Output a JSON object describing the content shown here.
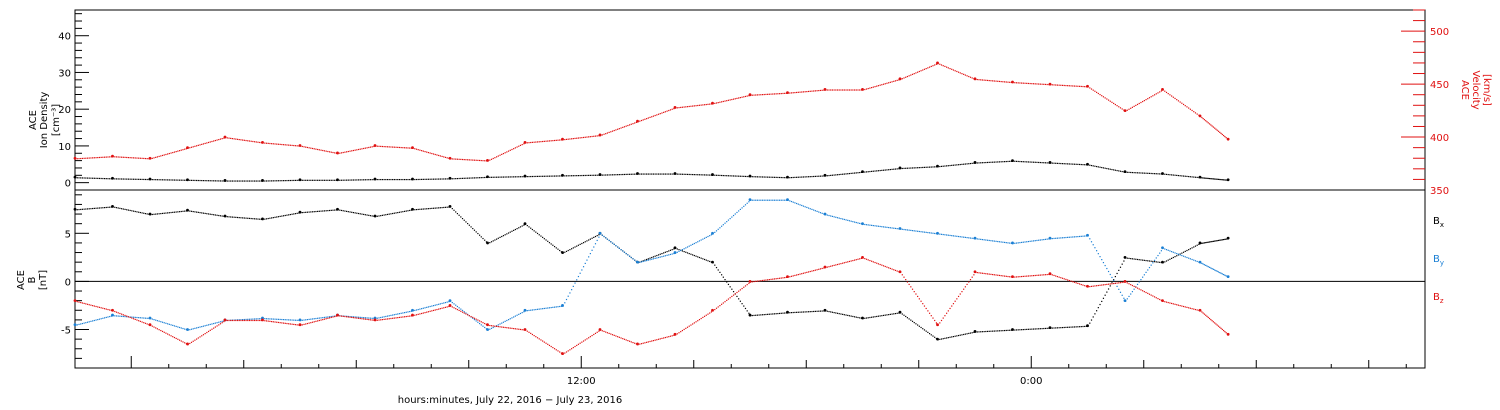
{
  "chart_data": [
    {
      "type": "scatter",
      "panel": "top",
      "left_axis_label": [
        "ACE",
        "Ion Density",
        "[cm⁻³]"
      ],
      "right_axis_label": [
        "ACE",
        "Velocity",
        "[km/s]"
      ],
      "left_ylim": [
        -2,
        47
      ],
      "right_ylim": [
        350,
        520
      ],
      "left_ticks": [
        "0",
        "10",
        "20",
        "30",
        "40"
      ],
      "left_tick_values": [
        0,
        10,
        20,
        30,
        40
      ],
      "right_ticks": [
        "350",
        "400",
        "450",
        "500"
      ],
      "right_tick_values": [
        350,
        400,
        450,
        500
      ],
      "colors": {
        "density": "#000000",
        "velocity": "#e01010"
      },
      "series": [
        {
          "axis": "left",
          "color": "#000000",
          "x": [
            0,
            1,
            2,
            3,
            4,
            5,
            6,
            7,
            8,
            9,
            10,
            11,
            12,
            13,
            14,
            15,
            16,
            17,
            18,
            19,
            20,
            21,
            22,
            23,
            24,
            25,
            26,
            27,
            28,
            29,
            30,
            30.75
          ],
          "values": [
            1.5,
            1.2,
            1.0,
            0.8,
            0.6,
            0.6,
            0.8,
            0.8,
            1.0,
            1.0,
            1.2,
            1.6,
            1.8,
            2.0,
            2.2,
            2.5,
            2.5,
            2.2,
            1.8,
            1.5,
            2.0,
            3.0,
            4.0,
            4.5,
            5.5,
            6.0,
            5.5,
            5.0,
            3.0,
            2.5,
            1.5,
            0.8
          ]
        },
        {
          "axis": "right",
          "color": "#e01010",
          "x": [
            0,
            1,
            2,
            3,
            4,
            5,
            6,
            7,
            8,
            9,
            10,
            11,
            12,
            13,
            14,
            15,
            16,
            17,
            18,
            19,
            20,
            21,
            22,
            23,
            24,
            25,
            26,
            27,
            28,
            29,
            30,
            30.75
          ],
          "values": [
            380,
            382,
            380,
            390,
            400,
            395,
            392,
            385,
            392,
            390,
            380,
            378,
            395,
            398,
            402,
            415,
            428,
            432,
            440,
            442,
            445,
            445,
            455,
            470,
            455,
            452,
            450,
            448,
            425,
            445,
            420,
            398
          ]
        }
      ]
    },
    {
      "type": "scatter",
      "panel": "bottom",
      "left_axis_label": [
        "ACE",
        "B",
        "[nT]"
      ],
      "ylim": [
        -9,
        9.5
      ],
      "ticks": [
        "-5",
        "0",
        "5"
      ],
      "tick_values": [
        -5,
        0,
        5
      ],
      "legend": [
        "Bx",
        "By",
        "Bz"
      ],
      "colors": {
        "Bx": "#000000",
        "By": "#1a7fd4",
        "Bz": "#e01010"
      },
      "series": [
        {
          "name": "Bx",
          "color": "#000000",
          "x": [
            0,
            1,
            2,
            3,
            4,
            5,
            6,
            7,
            8,
            9,
            10,
            11,
            12,
            13,
            14,
            15,
            16,
            17,
            18,
            19,
            20,
            21,
            22,
            23,
            24,
            25,
            26,
            27,
            28,
            29,
            30,
            30.75
          ],
          "values": [
            7.5,
            7.8,
            7.0,
            7.4,
            6.8,
            6.5,
            7.2,
            7.5,
            6.8,
            7.5,
            7.8,
            4.0,
            6.0,
            3.0,
            5.0,
            2.0,
            3.5,
            2.0,
            -3.5,
            -3.2,
            -3.0,
            -3.8,
            -3.2,
            -6.0,
            -5.2,
            -5.0,
            -4.8,
            -4.6,
            2.5,
            2.0,
            4.0,
            4.5
          ]
        },
        {
          "name": "By",
          "color": "#1a7fd4",
          "x": [
            0,
            1,
            2,
            3,
            4,
            5,
            6,
            7,
            8,
            9,
            10,
            11,
            12,
            13,
            14,
            15,
            16,
            17,
            18,
            19,
            20,
            21,
            22,
            23,
            24,
            25,
            26,
            27,
            28,
            29,
            30,
            30.75
          ],
          "values": [
            -4.5,
            -3.5,
            -3.8,
            -5.0,
            -4.0,
            -3.8,
            -4.0,
            -3.5,
            -3.8,
            -3.0,
            -2.0,
            -5.0,
            -3.0,
            -2.5,
            5.0,
            2.0,
            3.0,
            5.0,
            8.5,
            8.5,
            7.0,
            6.0,
            5.5,
            5.0,
            4.5,
            4.0,
            4.5,
            4.8,
            -2.0,
            3.5,
            2.0,
            0.5
          ]
        },
        {
          "name": "Bz",
          "color": "#e01010",
          "x": [
            0,
            1,
            2,
            3,
            4,
            5,
            6,
            7,
            8,
            9,
            10,
            11,
            12,
            13,
            14,
            15,
            16,
            17,
            18,
            19,
            20,
            21,
            22,
            23,
            24,
            25,
            26,
            27,
            28,
            29,
            30,
            30.75
          ],
          "values": [
            -2.0,
            -3.0,
            -4.5,
            -6.5,
            -4.0,
            -4.0,
            -4.5,
            -3.5,
            -4.0,
            -3.5,
            -2.5,
            -4.5,
            -5.0,
            -7.5,
            -5.0,
            -6.5,
            -5.5,
            -3.0,
            0.0,
            0.5,
            1.5,
            2.5,
            1.0,
            -4.5,
            1.0,
            0.5,
            0.8,
            -0.5,
            0.0,
            -2.0,
            -3.0,
            -5.5
          ]
        }
      ]
    }
  ],
  "xaxis": {
    "label": "hours:minutes, July 22, 2016 − July 23, 2016",
    "range_hours": [
      -1.5,
      34.5
    ],
    "tick_labels": [
      "12:00",
      "0:00"
    ],
    "tick_hours": [
      12,
      24
    ]
  },
  "legend": {
    "bx_main": "B",
    "bx_sub": "x",
    "by_main": "B",
    "by_sub": "y",
    "bz_main": "B",
    "bz_sub": "z"
  }
}
